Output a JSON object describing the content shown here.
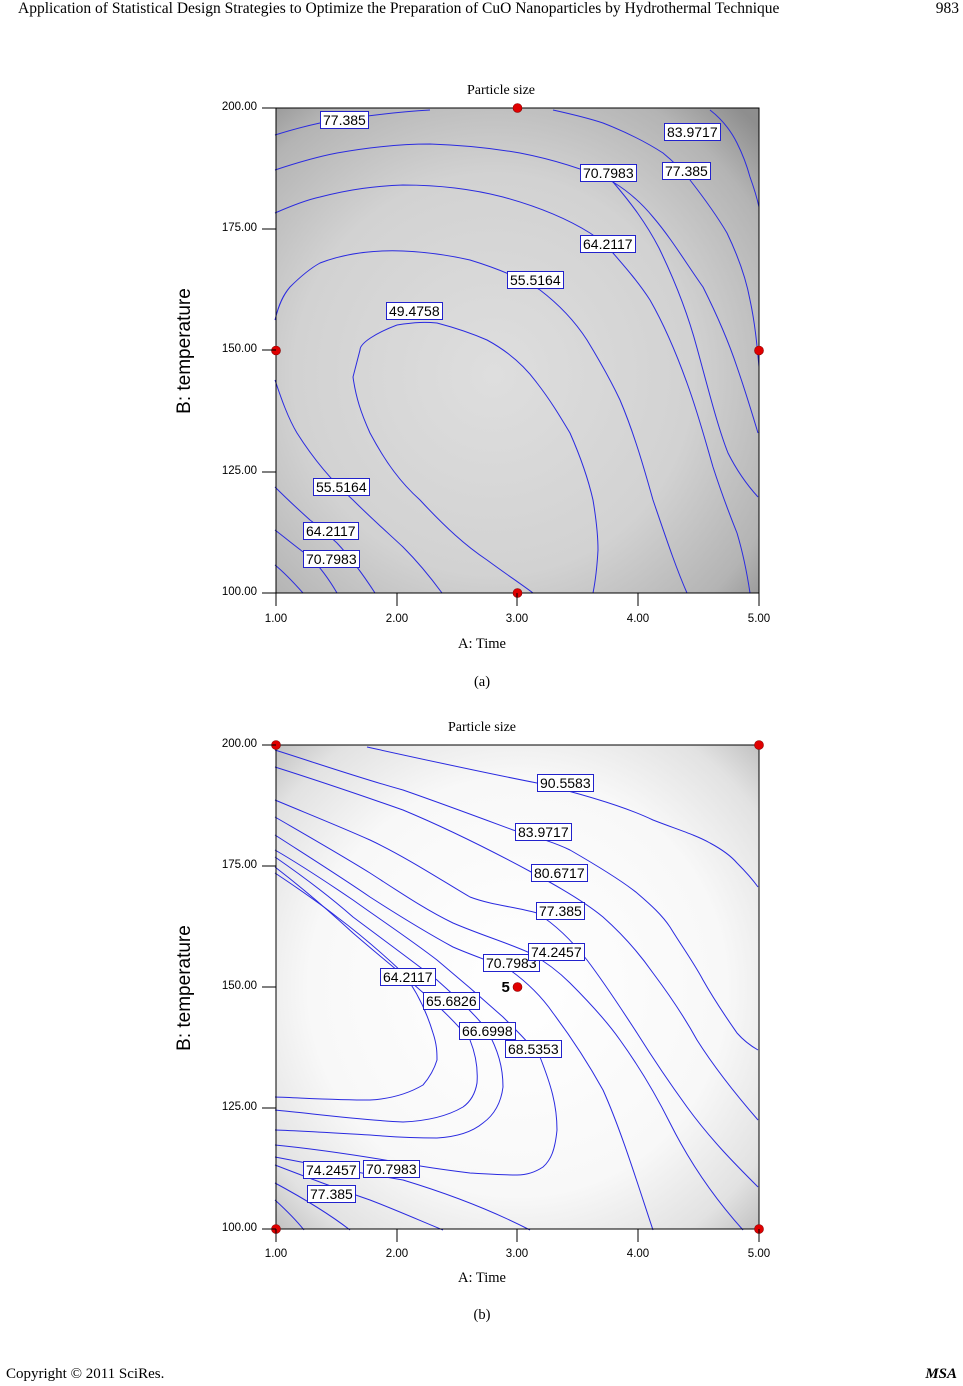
{
  "header": {
    "title": "Application of Statistical Design Strategies to Optimize the Preparation of CuO Nanoparticles by Hydrothermal Technique",
    "page_number": "983"
  },
  "footer": {
    "copyright": "Copyright  ©  2011  SciRes.",
    "journal": "MSA"
  },
  "chart_data": [
    {
      "type": "contour",
      "caption": "(a)",
      "title": "Particle size",
      "xlabel": "A: Time",
      "ylabel": "B: temperature",
      "xlim": [
        1,
        5
      ],
      "ylim": [
        100,
        200
      ],
      "x_ticks": [
        "1.00",
        "2.00",
        "3.00",
        "4.00",
        "5.00"
      ],
      "y_ticks": [
        "100.00",
        "125.00",
        "150.00",
        "175.00",
        "200.00"
      ],
      "contour_labels": [
        "77.385",
        "83.9717",
        "70.7983",
        "77.385",
        "64.2117",
        "55.5164",
        "49.4758",
        "55.5164",
        "64.2117",
        "70.7983"
      ],
      "contour_levels": [
        49.4758,
        55.5164,
        64.2117,
        70.7983,
        77.385,
        83.9717
      ],
      "design_points": [
        {
          "x": 3,
          "y": 200
        },
        {
          "x": 1,
          "y": 150
        },
        {
          "x": 5,
          "y": 150
        },
        {
          "x": 3,
          "y": 100
        }
      ],
      "contour_color": "#2a2ae0",
      "point_color": "#e00000",
      "shading": "grayscale"
    },
    {
      "type": "contour",
      "caption": "(b)",
      "title": "Particle size",
      "xlabel": "A: Time",
      "ylabel": "B: temperature",
      "xlim": [
        1,
        5
      ],
      "ylim": [
        100,
        200
      ],
      "x_ticks": [
        "1.00",
        "2.00",
        "3.00",
        "4.00",
        "5.00"
      ],
      "y_ticks": [
        "100.00",
        "125.00",
        "150.00",
        "175.00",
        "200.00"
      ],
      "contour_labels": [
        "90.5583",
        "83.9717",
        "80.6717",
        "77.385",
        "74.2457",
        "70.7983",
        "64.2117",
        "65.6826",
        "66.6998",
        "68.5353",
        "74.2457",
        "70.7983",
        "77.385"
      ],
      "contour_levels": [
        64.2117,
        65.6826,
        66.6998,
        68.5353,
        70.7983,
        74.2457,
        77.385,
        80.6717,
        83.9717,
        90.5583
      ],
      "design_points": [
        {
          "x": 1,
          "y": 200
        },
        {
          "x": 5,
          "y": 200
        },
        {
          "x": 1,
          "y": 100
        },
        {
          "x": 5,
          "y": 100
        },
        {
          "x": 3,
          "y": 150,
          "label": "5"
        }
      ],
      "contour_color": "#2a2ae0",
      "point_color": "#e00000",
      "shading": "grayscale"
    }
  ]
}
